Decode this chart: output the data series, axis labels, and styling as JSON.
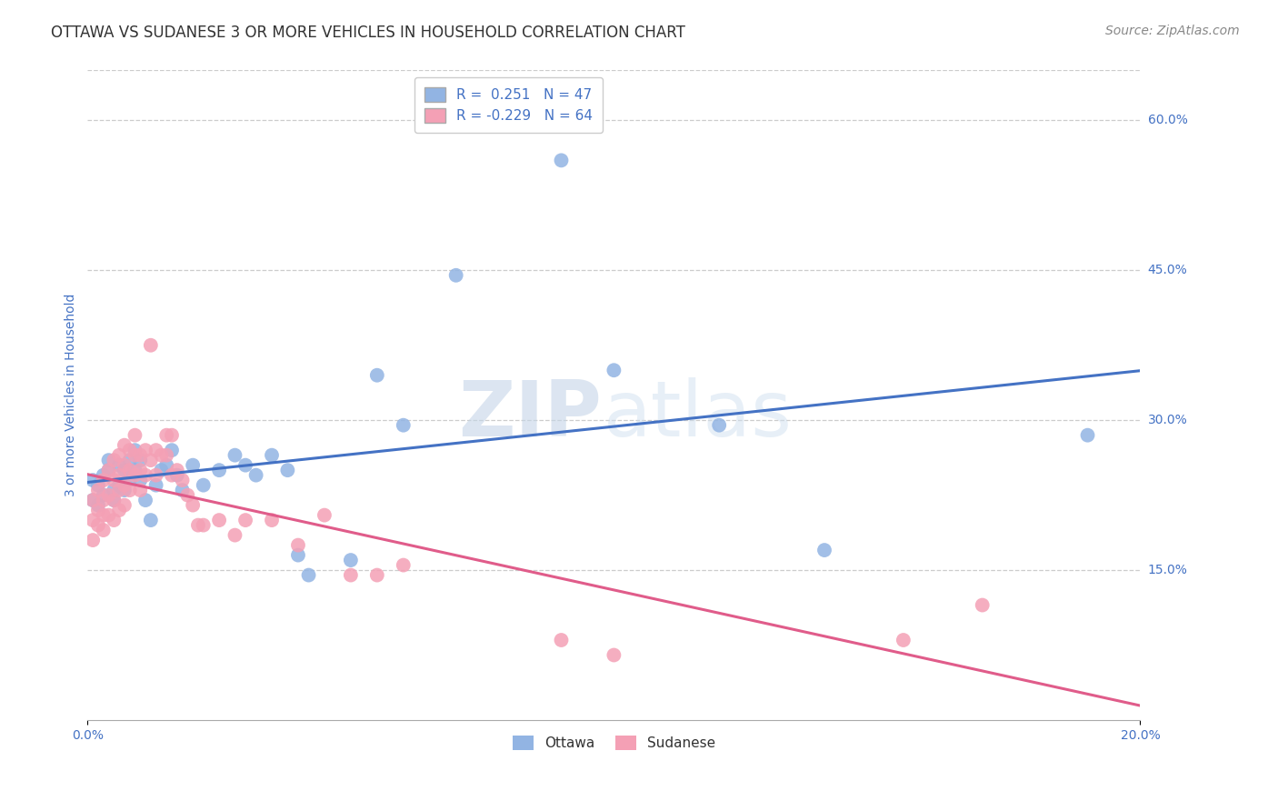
{
  "title": "OTTAWA VS SUDANESE 3 OR MORE VEHICLES IN HOUSEHOLD CORRELATION CHART",
  "source": "Source: ZipAtlas.com",
  "ylabel": "3 or more Vehicles in Household",
  "legend_ottawa": "Ottawa",
  "legend_sudanese": "Sudanese",
  "ottawa_R": 0.251,
  "ottawa_N": 47,
  "sudanese_R": -0.229,
  "sudanese_N": 64,
  "ottawa_color": "#92b4e3",
  "sudanese_color": "#f4a0b5",
  "line_ottawa_color": "#4472c4",
  "line_sudanese_color": "#e05c8a",
  "ylabel_color": "#4472c4",
  "xaxis_color": "#4472c4",
  "yaxis_right_color": "#4472c4",
  "background_color": "#ffffff",
  "watermark": "ZIPatlas",
  "xlim": [
    0.0,
    0.2
  ],
  "ylim": [
    0.0,
    0.65
  ],
  "ottawa_x": [
    0.001,
    0.001,
    0.002,
    0.002,
    0.003,
    0.003,
    0.004,
    0.004,
    0.005,
    0.005,
    0.006,
    0.006,
    0.007,
    0.007,
    0.008,
    0.008,
    0.009,
    0.009,
    0.01,
    0.01,
    0.011,
    0.012,
    0.013,
    0.014,
    0.015,
    0.016,
    0.017,
    0.018,
    0.02,
    0.022,
    0.025,
    0.028,
    0.03,
    0.032,
    0.035,
    0.038,
    0.04,
    0.042,
    0.05,
    0.055,
    0.06,
    0.07,
    0.09,
    0.1,
    0.12,
    0.14,
    0.19
  ],
  "ottawa_y": [
    0.24,
    0.22,
    0.235,
    0.215,
    0.245,
    0.225,
    0.25,
    0.26,
    0.23,
    0.22,
    0.255,
    0.235,
    0.25,
    0.23,
    0.26,
    0.24,
    0.27,
    0.25,
    0.26,
    0.24,
    0.22,
    0.2,
    0.235,
    0.25,
    0.255,
    0.27,
    0.245,
    0.23,
    0.255,
    0.235,
    0.25,
    0.265,
    0.255,
    0.245,
    0.265,
    0.25,
    0.165,
    0.145,
    0.16,
    0.345,
    0.295,
    0.445,
    0.56,
    0.35,
    0.295,
    0.17,
    0.285
  ],
  "sudanese_x": [
    0.001,
    0.001,
    0.001,
    0.002,
    0.002,
    0.002,
    0.003,
    0.003,
    0.003,
    0.003,
    0.004,
    0.004,
    0.004,
    0.005,
    0.005,
    0.005,
    0.005,
    0.006,
    0.006,
    0.006,
    0.006,
    0.007,
    0.007,
    0.007,
    0.007,
    0.008,
    0.008,
    0.008,
    0.009,
    0.009,
    0.009,
    0.01,
    0.01,
    0.01,
    0.011,
    0.011,
    0.012,
    0.012,
    0.013,
    0.013,
    0.014,
    0.015,
    0.015,
    0.016,
    0.016,
    0.017,
    0.018,
    0.019,
    0.02,
    0.021,
    0.022,
    0.025,
    0.028,
    0.03,
    0.035,
    0.04,
    0.045,
    0.05,
    0.055,
    0.06,
    0.09,
    0.1,
    0.155,
    0.17
  ],
  "sudanese_y": [
    0.22,
    0.2,
    0.18,
    0.23,
    0.21,
    0.195,
    0.24,
    0.22,
    0.205,
    0.19,
    0.25,
    0.225,
    0.205,
    0.26,
    0.24,
    0.22,
    0.2,
    0.265,
    0.245,
    0.23,
    0.21,
    0.275,
    0.255,
    0.235,
    0.215,
    0.27,
    0.25,
    0.23,
    0.285,
    0.265,
    0.245,
    0.265,
    0.25,
    0.23,
    0.27,
    0.245,
    0.375,
    0.26,
    0.27,
    0.245,
    0.265,
    0.285,
    0.265,
    0.285,
    0.245,
    0.25,
    0.24,
    0.225,
    0.215,
    0.195,
    0.195,
    0.2,
    0.185,
    0.2,
    0.2,
    0.175,
    0.205,
    0.145,
    0.145,
    0.155,
    0.08,
    0.065,
    0.08,
    0.115
  ],
  "title_fontsize": 12,
  "source_fontsize": 10,
  "label_fontsize": 10,
  "tick_fontsize": 10,
  "legend_fontsize": 11
}
